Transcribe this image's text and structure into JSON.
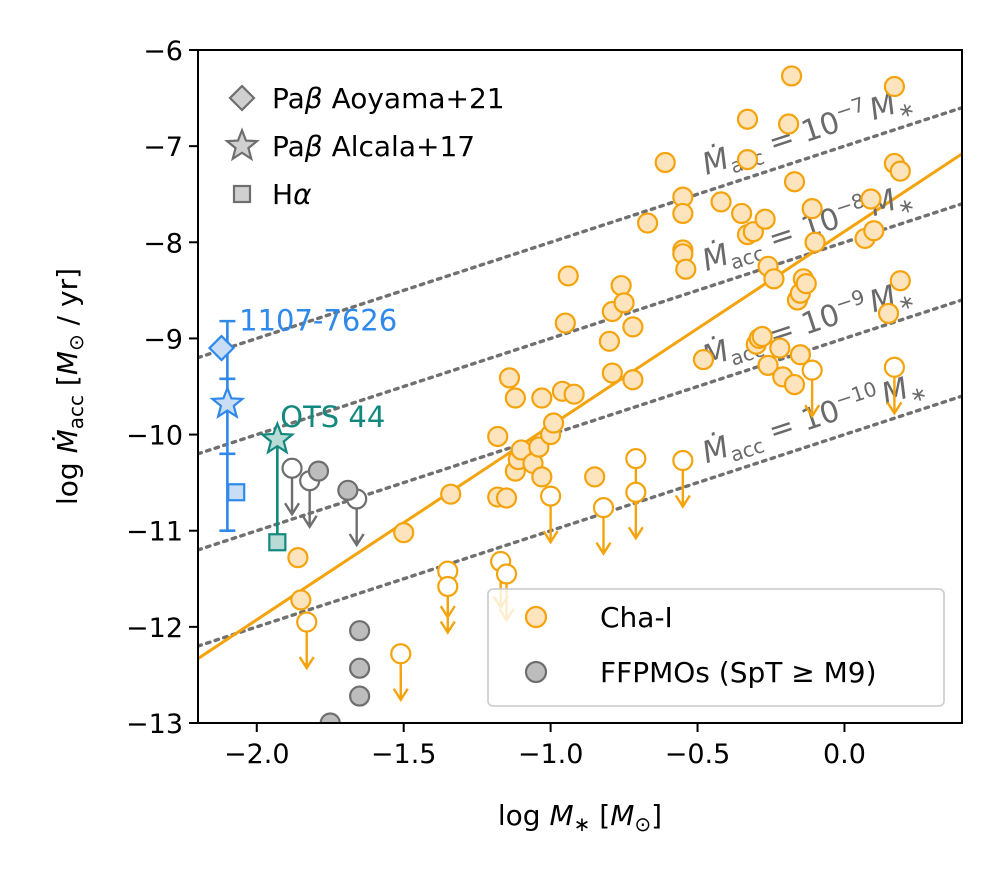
{
  "chart_data": {
    "type": "scatter",
    "title": "",
    "xlabel": "log M* [M⊙]",
    "ylabel": "log Ṁacc [M⊙ / yr]",
    "xlim": [
      -2.2,
      0.4
    ],
    "ylim": [
      -13,
      -6
    ],
    "xticks": [
      -2.0,
      -1.5,
      -1.0,
      -0.5,
      0.0
    ],
    "yticks": [
      -13,
      -12,
      -11,
      -10,
      -9,
      -8,
      -7,
      -6
    ],
    "xtick_labels": [
      "−2.0",
      "−1.5",
      "−1.0",
      "−0.5",
      "0.0"
    ],
    "ytick_labels": [
      "−13",
      "−12",
      "−11",
      "−10",
      "−9",
      "−8",
      "−7",
      "−6"
    ],
    "xlabel_parts": {
      "pre": "log ",
      "var": "M",
      "sub": "∗",
      "post": " [",
      "unit": "M",
      "unit_sub": "⊙",
      "end": "]"
    },
    "ylabel_parts": {
      "pre": "log ",
      "var": "Ṁ",
      "sub": "acc",
      "post": " [",
      "unit": "M",
      "unit_sub": "⊙",
      "end": " / yr]"
    },
    "colors": {
      "chai_edge": "#f5a30c",
      "chai_fill": "#fde4bd",
      "ffp_edge": "#6e6e6e",
      "ffp_fill": "#bdbdbd",
      "blue": "#2f89ea",
      "blue_fill": "#c9def5",
      "teal": "#12887e",
      "teal_fill": "#b9dbd6",
      "ratio_line": "#707070",
      "fit_line": "#f5a30c"
    },
    "fit_line": {
      "x": [
        -2.2,
        0.4
      ],
      "y": [
        -12.33,
        -7.08
      ]
    },
    "ratio_lines": [
      {
        "text": "Ṁacc = 10−7 M∗",
        "parts": [
          "Ṁ",
          "acc",
          " = 10",
          "−7",
          "M",
          "∗"
        ],
        "intercept": -7,
        "label_x": -0.47,
        "label_y": -7.3
      },
      {
        "text": "Ṁacc = 10−8 M∗",
        "parts": [
          "Ṁ",
          "acc",
          " = 10",
          "−8",
          "M",
          "∗"
        ],
        "intercept": -8,
        "label_x": -0.47,
        "label_y": -8.3
      },
      {
        "text": "Ṁacc = 10−9 M∗",
        "parts": [
          "Ṁ",
          "acc",
          " = 10",
          "−9",
          "M",
          "∗"
        ],
        "intercept": -9,
        "label_x": -0.47,
        "label_y": -9.3
      },
      {
        "text": "Ṁacc = 10−10 M∗",
        "parts": [
          "Ṁ",
          "acc",
          " = 10",
          "−10",
          "M",
          "∗"
        ],
        "intercept": -10,
        "label_x": -0.47,
        "label_y": -10.3
      }
    ],
    "legend_markers": [
      {
        "shape": "diamond",
        "label": "Paβ Aoyama+21",
        "pre": "Pa",
        "greek": "β",
        "post": " Aoyama+21"
      },
      {
        "shape": "star",
        "label": "Paβ Alcala+17",
        "pre": "Pa",
        "greek": "β",
        "post": " Alcala+17"
      },
      {
        "shape": "square",
        "label": "Hα",
        "pre": "H",
        "greek": "α",
        "post": ""
      }
    ],
    "legend_series": [
      {
        "name": "Cha-I",
        "color": "chai"
      },
      {
        "name": "FFPMOs (SpT ≥ M9)",
        "color": "ffp"
      }
    ],
    "series": [
      {
        "name": "Cha-I",
        "detections": [
          [
            -1.86,
            -11.28
          ],
          [
            -1.85,
            -11.72
          ],
          [
            -1.5,
            -11.02
          ],
          [
            -1.34,
            -10.62
          ],
          [
            -1.18,
            -10.02
          ],
          [
            -1.18,
            -10.65
          ],
          [
            -1.15,
            -10.66
          ],
          [
            -1.14,
            -9.41
          ],
          [
            -1.12,
            -9.62
          ],
          [
            -1.12,
            -10.38
          ],
          [
            -1.11,
            -10.26
          ],
          [
            -1.1,
            -10.16
          ],
          [
            -1.06,
            -10.3
          ],
          [
            -1.04,
            -10.13
          ],
          [
            -1.03,
            -10.44
          ],
          [
            -1.03,
            -9.62
          ],
          [
            -1.0,
            -10.0
          ],
          [
            -0.99,
            -9.88
          ],
          [
            -0.96,
            -9.55
          ],
          [
            -0.95,
            -8.84
          ],
          [
            -0.94,
            -8.35
          ],
          [
            -0.92,
            -9.58
          ],
          [
            -0.85,
            -10.44
          ],
          [
            -0.8,
            -9.03
          ],
          [
            -0.79,
            -8.72
          ],
          [
            -0.79,
            -9.36
          ],
          [
            -0.76,
            -8.45
          ],
          [
            -0.75,
            -8.63
          ],
          [
            -0.72,
            -8.88
          ],
          [
            -0.72,
            -9.43
          ],
          [
            -0.61,
            -7.17
          ],
          [
            -0.55,
            -7.53
          ],
          [
            -0.55,
            -7.7
          ],
          [
            -0.55,
            -8.08
          ],
          [
            -0.55,
            -8.12
          ],
          [
            -0.54,
            -8.28
          ],
          [
            -0.48,
            -9.22
          ],
          [
            -0.42,
            -7.58
          ],
          [
            -0.35,
            -7.7
          ],
          [
            -0.33,
            -7.14
          ],
          [
            -0.33,
            -6.72
          ],
          [
            -0.33,
            -7.92
          ],
          [
            -0.31,
            -7.89
          ],
          [
            -0.3,
            -9.06
          ],
          [
            -0.29,
            -9.0
          ],
          [
            -0.28,
            -8.98
          ],
          [
            -0.27,
            -7.76
          ],
          [
            -0.26,
            -8.25
          ],
          [
            -0.26,
            -9.28
          ],
          [
            -0.24,
            -8.38
          ],
          [
            -0.22,
            -9.1
          ],
          [
            -0.21,
            -9.4
          ],
          [
            -0.19,
            -6.77
          ],
          [
            -0.18,
            -6.27
          ],
          [
            -0.17,
            -7.37
          ],
          [
            -0.16,
            -8.6
          ],
          [
            -0.15,
            -8.53
          ],
          [
            -0.14,
            -8.38
          ],
          [
            -0.13,
            -8.43
          ],
          [
            -0.11,
            -7.65
          ],
          [
            -0.1,
            -8.0
          ],
          [
            -0.17,
            -9.48
          ],
          [
            -0.15,
            -9.17
          ],
          [
            0.07,
            -7.96
          ],
          [
            0.09,
            -7.55
          ],
          [
            0.1,
            -7.88
          ],
          [
            0.15,
            -8.74
          ],
          [
            0.17,
            -6.38
          ],
          [
            0.17,
            -7.18
          ],
          [
            0.19,
            -7.26
          ],
          [
            0.19,
            -8.4
          ],
          [
            -0.67,
            -7.8
          ]
        ],
        "upper_limits": [
          [
            -1.83,
            -11.95
          ],
          [
            -1.51,
            -12.28
          ],
          [
            -1.35,
            -11.42
          ],
          [
            -1.35,
            -11.58
          ],
          [
            -1.17,
            -11.32
          ],
          [
            -1.15,
            -11.45
          ],
          [
            -1.0,
            -10.64
          ],
          [
            -0.82,
            -10.76
          ],
          [
            -0.71,
            -10.25
          ],
          [
            -0.71,
            -10.6
          ],
          [
            -0.55,
            -10.27
          ],
          [
            -0.11,
            -9.33
          ],
          [
            0.17,
            -9.3
          ]
        ]
      },
      {
        "name": "FFPMOs (SpT ≥ M9)",
        "detections": [
          [
            -1.79,
            -10.38
          ],
          [
            -1.69,
            -10.58
          ],
          [
            -1.65,
            -12.04
          ],
          [
            -1.65,
            -12.43
          ],
          [
            -1.65,
            -12.72
          ],
          [
            -1.75,
            -13.0
          ]
        ],
        "upper_limits": [
          [
            -1.88,
            -10.35
          ],
          [
            -1.82,
            -10.48
          ],
          [
            -1.66,
            -10.67
          ]
        ]
      }
    ],
    "objects": [
      {
        "name": "1107-7626",
        "color": "blue",
        "x": -2.07,
        "errorbar": {
          "x": -2.1,
          "ymin": -11.0,
          "ymax": -8.82
        },
        "label_x": -2.06,
        "label_y": -8.92,
        "points": [
          {
            "shape": "diamond",
            "x": -2.12,
            "y": -9.1
          },
          {
            "shape": "star",
            "x": -2.1,
            "y": -9.68
          },
          {
            "shape": "square",
            "x": -2.07,
            "y": -10.6
          }
        ]
      },
      {
        "name": "OTS 44",
        "color": "teal",
        "x": -1.93,
        "errorbar": {
          "x": -1.93,
          "ymin": -11.12,
          "ymax": -10.04
        },
        "label_x": -1.92,
        "label_y": -9.92,
        "points": [
          {
            "shape": "star",
            "x": -1.93,
            "y": -10.05
          },
          {
            "shape": "square",
            "x": -1.93,
            "y": -11.12
          }
        ]
      }
    ]
  }
}
